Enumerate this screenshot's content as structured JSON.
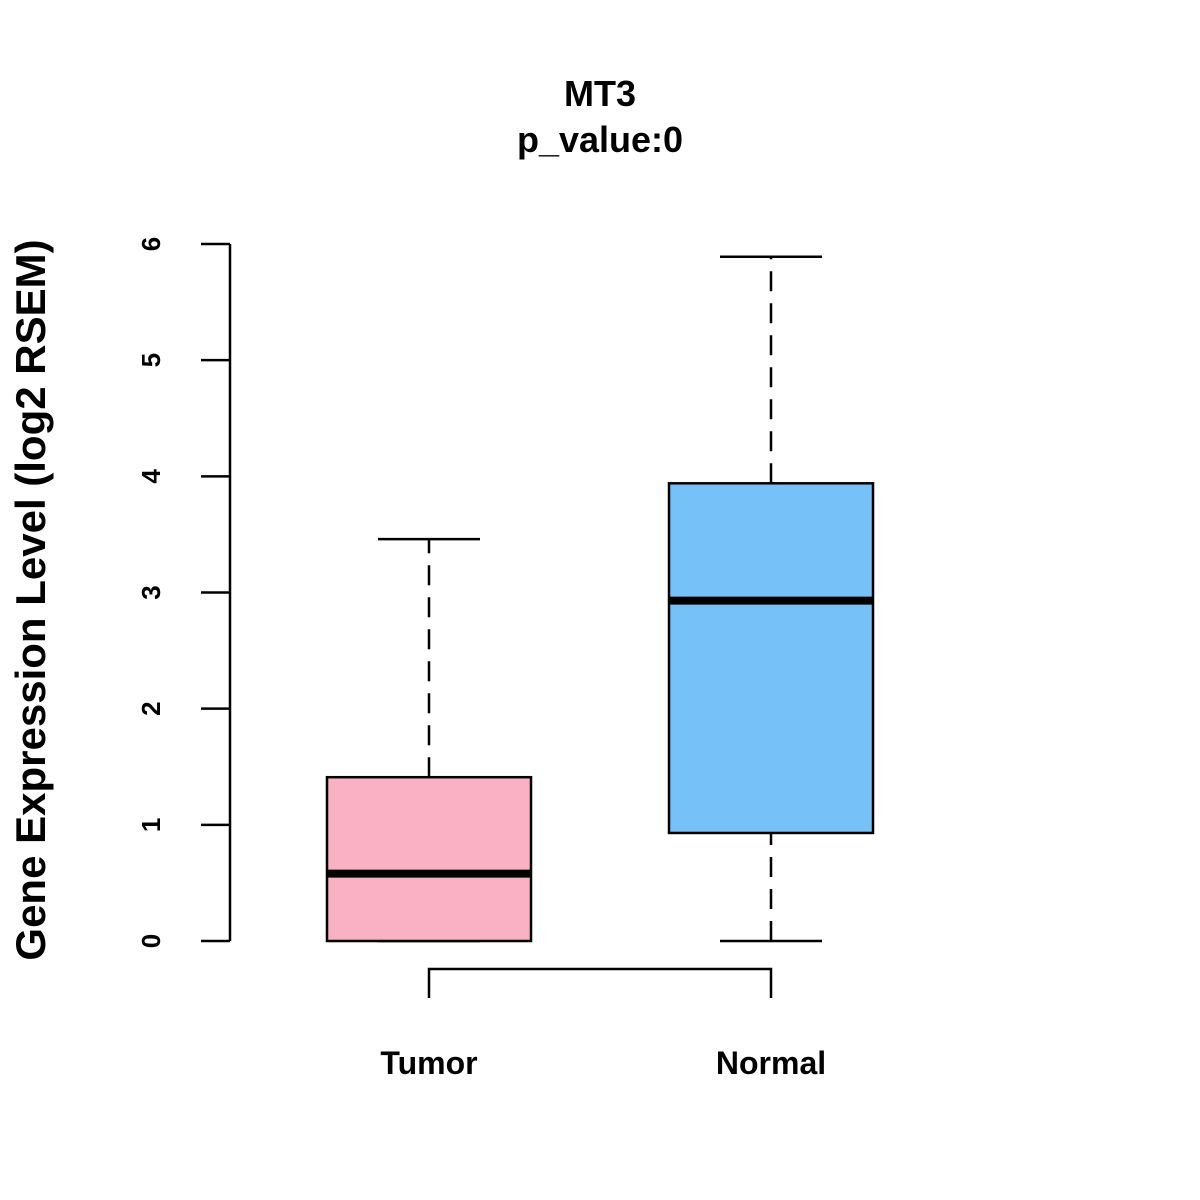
{
  "chart_data": {
    "type": "box",
    "title": "MT3",
    "subtitle": "p_value:0",
    "xlabel": "",
    "ylabel": "Gene Expression Level (log2 RSEM)",
    "ylim": [
      0,
      6
    ],
    "yticks": [
      0,
      1,
      2,
      3,
      4,
      5,
      6
    ],
    "categories": [
      "Tumor",
      "Normal"
    ],
    "boxes": [
      {
        "name": "Tumor",
        "min": 0,
        "q1": 0,
        "median": 0.58,
        "q3": 1.41,
        "max": 3.46,
        "color": "#FBB1C4"
      },
      {
        "name": "Normal",
        "min": 0,
        "q1": 0.93,
        "median": 2.93,
        "q3": 3.94,
        "max": 5.89,
        "color": "#77C1F9"
      }
    ],
    "comparison_bracket": [
      "Tumor",
      "Normal"
    ]
  }
}
